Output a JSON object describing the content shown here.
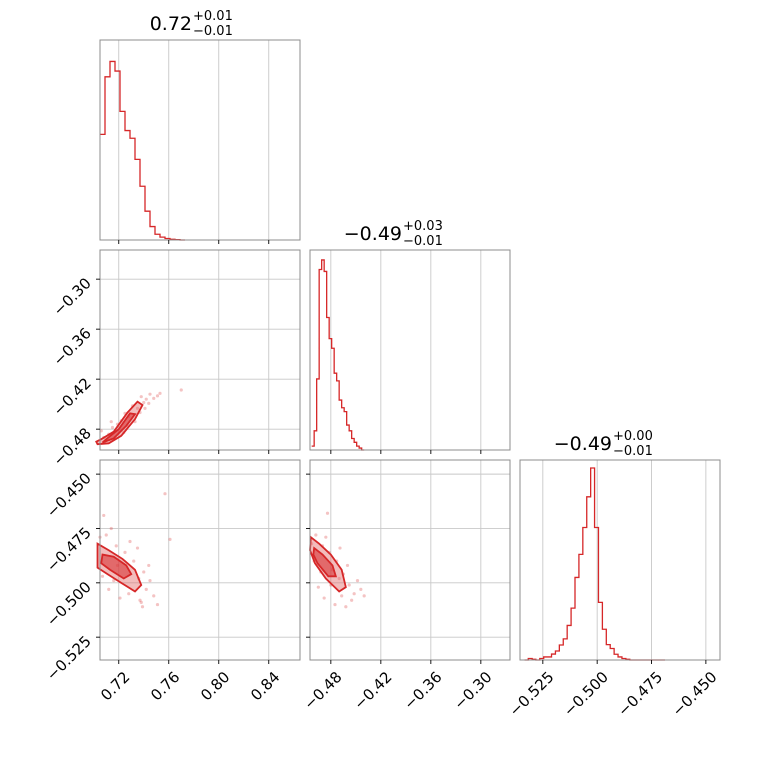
{
  "chart_data": {
    "type": "corner",
    "color": "#d62728",
    "grid": true,
    "parameters": [
      {
        "range": [
          0.705,
          0.865
        ],
        "ticks": [
          0.72,
          0.76,
          0.8,
          0.84
        ],
        "tick_labels": [
          "0.72",
          "0.76",
          "0.80",
          "0.84"
        ],
        "title": {
          "value": "0.72",
          "plus": "+0.01",
          "minus": "−0.01"
        },
        "hist_x": [
          0.705,
          0.709,
          0.713,
          0.717,
          0.721,
          0.725,
          0.729,
          0.733,
          0.737,
          0.741,
          0.745,
          0.749,
          0.753,
          0.757,
          0.761,
          0.765,
          0.769
        ],
        "hist_values": [
          0.55,
          0.85,
          0.93,
          0.88,
          0.67,
          0.57,
          0.53,
          0.42,
          0.28,
          0.15,
          0.07,
          0.03,
          0.015,
          0.008,
          0.004,
          0.002,
          0.0
        ]
      },
      {
        "range": [
          -0.505,
          -0.265
        ],
        "ticks": [
          -0.48,
          -0.42,
          -0.36,
          -0.3
        ],
        "tick_labels": [
          "−0.48",
          "−0.42",
          "−0.36",
          "−0.30"
        ],
        "title": {
          "value": "−0.49",
          "plus": "+0.03",
          "minus": "−0.01"
        },
        "hist_x": [
          -0.503,
          -0.5,
          -0.497,
          -0.494,
          -0.491,
          -0.488,
          -0.485,
          -0.482,
          -0.479,
          -0.476,
          -0.473,
          -0.47,
          -0.467,
          -0.464,
          -0.461,
          -0.458,
          -0.455,
          -0.452,
          -0.449,
          -0.446,
          -0.443
        ],
        "hist_values": [
          0.02,
          0.1,
          0.37,
          0.94,
          0.99,
          0.93,
          0.69,
          0.58,
          0.53,
          0.4,
          0.36,
          0.26,
          0.22,
          0.2,
          0.13,
          0.1,
          0.06,
          0.04,
          0.02,
          0.01,
          0.0
        ]
      },
      {
        "range": [
          -0.5355,
          -0.4435
        ],
        "ticks": [
          -0.525,
          -0.5,
          -0.475,
          -0.45
        ],
        "tick_labels": [
          "−0.525",
          "−0.500",
          "−0.475",
          "−0.450"
        ],
        "title": {
          "value": "−0.49",
          "plus": "+0.00",
          "minus": "−0.01"
        },
        "hist_x": [
          -0.5334,
          -0.5317,
          -0.5299,
          -0.5282,
          -0.5264,
          -0.5246,
          -0.5228,
          -0.521,
          -0.5192,
          -0.5174,
          -0.5156,
          -0.5138,
          -0.512,
          -0.5102,
          -0.5084,
          -0.5066,
          -0.5048,
          -0.503,
          -0.5012,
          -0.4994,
          -0.4976,
          -0.4958,
          -0.494,
          -0.4922,
          -0.4904,
          -0.4886,
          -0.4868,
          -0.485,
          -0.4832,
          -0.4814,
          -0.4796,
          -0.4778,
          -0.476,
          -0.4742,
          -0.4724,
          -0.4706
        ],
        "hist_values": [
          0.0,
          0.008,
          0.004,
          0.0,
          0.008,
          0.016,
          0.016,
          0.031,
          0.047,
          0.078,
          0.11,
          0.18,
          0.27,
          0.43,
          0.55,
          0.69,
          0.85,
          1.0,
          0.69,
          0.3,
          0.16,
          0.08,
          0.06,
          0.03,
          0.016,
          0.008,
          0.004,
          0.0,
          0.0,
          0.0,
          0.0,
          0.0,
          0.0,
          0.0,
          0.0,
          0.0
        ]
      }
    ],
    "pairs": [
      {
        "x_param": 0,
        "y_param": 1,
        "contour_outer": [
          [
            0.703,
            -0.498
          ],
          [
            0.712,
            -0.497
          ],
          [
            0.722,
            -0.488
          ],
          [
            0.733,
            -0.468
          ],
          [
            0.739,
            -0.451
          ],
          [
            0.735,
            -0.447
          ],
          [
            0.727,
            -0.46
          ],
          [
            0.716,
            -0.483
          ],
          [
            0.706,
            -0.492
          ],
          [
            0.702,
            -0.495
          ]
        ],
        "contour_inner": [
          [
            0.707,
            -0.496
          ],
          [
            0.716,
            -0.491
          ],
          [
            0.726,
            -0.476
          ],
          [
            0.733,
            -0.462
          ],
          [
            0.729,
            -0.461
          ],
          [
            0.72,
            -0.48
          ],
          [
            0.71,
            -0.492
          ]
        ],
        "samples": [
          [
            0.708,
            -0.49
          ],
          [
            0.715,
            -0.478
          ],
          [
            0.722,
            -0.47
          ],
          [
            0.728,
            -0.465
          ],
          [
            0.735,
            -0.455
          ],
          [
            0.74,
            -0.448
          ],
          [
            0.742,
            -0.444
          ],
          [
            0.745,
            -0.438
          ],
          [
            0.738,
            -0.441
          ],
          [
            0.725,
            -0.461
          ],
          [
            0.719,
            -0.474
          ],
          [
            0.712,
            -0.486
          ],
          [
            0.731,
            -0.452
          ],
          [
            0.744,
            -0.449
          ],
          [
            0.748,
            -0.443
          ],
          [
            0.733,
            -0.471
          ],
          [
            0.706,
            -0.482
          ],
          [
            0.751,
            -0.44
          ],
          [
            0.737,
            -0.46
          ],
          [
            0.727,
            -0.476
          ],
          [
            0.717,
            -0.49
          ],
          [
            0.741,
            -0.455
          ],
          [
            0.724,
            -0.484
          ],
          [
            0.753,
            -0.437
          ],
          [
            0.77,
            -0.433
          ],
          [
            0.714,
            -0.471
          ]
        ]
      },
      {
        "x_param": 0,
        "y_param": 2,
        "contour_outer": [
          [
            0.703,
            -0.482
          ],
          [
            0.712,
            -0.485
          ],
          [
            0.723,
            -0.489
          ],
          [
            0.733,
            -0.494
          ],
          [
            0.738,
            -0.501
          ],
          [
            0.733,
            -0.504
          ],
          [
            0.722,
            -0.5
          ],
          [
            0.711,
            -0.496
          ],
          [
            0.703,
            -0.493
          ]
        ],
        "contour_inner": [
          [
            0.707,
            -0.487
          ],
          [
            0.716,
            -0.488
          ],
          [
            0.726,
            -0.492
          ],
          [
            0.73,
            -0.496
          ],
          [
            0.724,
            -0.498
          ],
          [
            0.713,
            -0.494
          ],
          [
            0.706,
            -0.491
          ]
        ],
        "samples": [
          [
            0.71,
            -0.478
          ],
          [
            0.718,
            -0.483
          ],
          [
            0.725,
            -0.486
          ],
          [
            0.732,
            -0.49
          ],
          [
            0.74,
            -0.495
          ],
          [
            0.742,
            -0.503
          ],
          [
            0.737,
            -0.508
          ],
          [
            0.728,
            -0.505
          ],
          [
            0.716,
            -0.499
          ],
          [
            0.707,
            -0.497
          ],
          [
            0.714,
            -0.475
          ],
          [
            0.745,
            -0.499
          ],
          [
            0.748,
            -0.506
          ],
          [
            0.721,
            -0.507
          ],
          [
            0.705,
            -0.479
          ],
          [
            0.735,
            -0.484
          ],
          [
            0.739,
            -0.511
          ],
          [
            0.712,
            -0.503
          ],
          [
            0.729,
            -0.481
          ],
          [
            0.744,
            -0.492
          ],
          [
            0.751,
            -0.51
          ],
          [
            0.719,
            -0.492
          ],
          [
            0.736,
            -0.498
          ],
          [
            0.761,
            -0.48
          ],
          [
            0.757,
            -0.459
          ],
          [
            0.708,
            -0.469
          ],
          [
            0.738,
            -0.509
          ]
        ]
      },
      {
        "x_param": 1,
        "y_param": 2,
        "contour_outer": [
          [
            -0.504,
            -0.479
          ],
          [
            -0.494,
            -0.482
          ],
          [
            -0.48,
            -0.487
          ],
          [
            -0.467,
            -0.494
          ],
          [
            -0.462,
            -0.502
          ],
          [
            -0.47,
            -0.504
          ],
          [
            -0.486,
            -0.498
          ],
          [
            -0.499,
            -0.491
          ],
          [
            -0.505,
            -0.485
          ]
        ],
        "contour_inner": [
          [
            -0.5,
            -0.484
          ],
          [
            -0.49,
            -0.487
          ],
          [
            -0.478,
            -0.492
          ],
          [
            -0.474,
            -0.497
          ],
          [
            -0.483,
            -0.497
          ],
          [
            -0.496,
            -0.491
          ],
          [
            -0.501,
            -0.487
          ]
        ],
        "samples": [
          [
            -0.498,
            -0.478
          ],
          [
            -0.49,
            -0.483
          ],
          [
            -0.482,
            -0.486
          ],
          [
            -0.473,
            -0.49
          ],
          [
            -0.465,
            -0.496
          ],
          [
            -0.458,
            -0.501
          ],
          [
            -0.452,
            -0.505
          ],
          [
            -0.455,
            -0.508
          ],
          [
            -0.467,
            -0.506
          ],
          [
            -0.48,
            -0.501
          ],
          [
            -0.492,
            -0.495
          ],
          [
            -0.5,
            -0.49
          ],
          [
            -0.486,
            -0.479
          ],
          [
            -0.469,
            -0.484
          ],
          [
            -0.46,
            -0.492
          ],
          [
            -0.448,
            -0.499
          ],
          [
            -0.475,
            -0.51
          ],
          [
            -0.495,
            -0.502
          ],
          [
            -0.503,
            -0.482
          ],
          [
            -0.462,
            -0.511
          ],
          [
            -0.444,
            -0.503
          ],
          [
            -0.478,
            -0.494
          ],
          [
            -0.488,
            -0.507
          ],
          [
            -0.47,
            -0.498
          ],
          [
            -0.44,
            -0.506
          ],
          [
            -0.484,
            -0.468
          ]
        ]
      }
    ]
  }
}
